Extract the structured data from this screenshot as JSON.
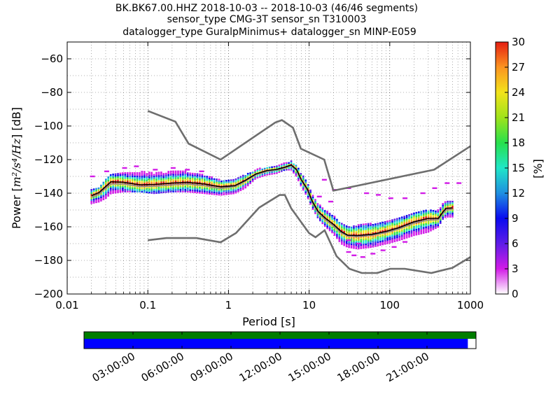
{
  "chart_data": {
    "type": "heatmap",
    "title_lines": [
      "BK.BK67.00.HHZ   2018-10-03 -- 2018-10-03  (46/46 segments)",
      "sensor_type CMG-3T sensor_sn T310003",
      "datalogger_type GuralpMinimus+ datalogger_sn MINP-E059"
    ],
    "xlabel": "Period [s]",
    "ylabel_parts": [
      "Power [",
      "m²/s⁴/Hz",
      "] [dB]"
    ],
    "x_scale": "log",
    "xlim": [
      0.01,
      1000
    ],
    "ylim": [
      -200,
      -50
    ],
    "x_ticks": [
      {
        "value": 0.01,
        "label": "0.01"
      },
      {
        "value": 0.1,
        "label": "0.1"
      },
      {
        "value": 1,
        "label": "1"
      },
      {
        "value": 10,
        "label": "10"
      },
      {
        "value": 100,
        "label": "100"
      },
      {
        "value": 1000,
        "label": "1000"
      }
    ],
    "y_ticks": [
      {
        "value": -60,
        "label": "−60"
      },
      {
        "value": -80,
        "label": "−80"
      },
      {
        "value": -100,
        "label": "−100"
      },
      {
        "value": -120,
        "label": "−120"
      },
      {
        "value": -140,
        "label": "−140"
      },
      {
        "value": -160,
        "label": "−160"
      },
      {
        "value": -180,
        "label": "−180"
      },
      {
        "value": -200,
        "label": "−200"
      }
    ],
    "grid": "dotted",
    "colorbar": {
      "label": "[%]",
      "range": [
        0,
        30
      ],
      "ticks": [
        "0",
        "3",
        "6",
        "9",
        "12",
        "15",
        "18",
        "21",
        "24",
        "27",
        "30"
      ],
      "colors": [
        "#ffffff",
        "#d21ce7",
        "#5e1ce7",
        "#0a0af0",
        "#1f8fe0",
        "#20e6c8",
        "#27e04c",
        "#9fe31b",
        "#f2e31b",
        "#fb9421",
        "#e51e12"
      ]
    },
    "nhnm": {
      "name": "NHNM",
      "color": "#6e6e6e",
      "points": [
        [
          0.1,
          -91
        ],
        [
          0.22,
          -97.4
        ],
        [
          0.32,
          -110.5
        ],
        [
          0.8,
          -120
        ],
        [
          3.8,
          -97.9
        ],
        [
          4.6,
          -96.5
        ],
        [
          6.3,
          -101
        ],
        [
          7.9,
          -113.5
        ],
        [
          15.4,
          -120
        ],
        [
          20,
          -138.5
        ],
        [
          354.8,
          -126
        ],
        [
          1000,
          -112
        ]
      ]
    },
    "nlnm": {
      "name": "NLNM",
      "color": "#6e6e6e",
      "points": [
        [
          0.1,
          -168
        ],
        [
          0.17,
          -166.7
        ],
        [
          0.4,
          -166.7
        ],
        [
          0.8,
          -169.2
        ],
        [
          1.24,
          -163.7
        ],
        [
          2.4,
          -148.6
        ],
        [
          4.3,
          -141.1
        ],
        [
          5,
          -141.1
        ],
        [
          6,
          -149
        ],
        [
          10,
          -163.8
        ],
        [
          12,
          -166.2
        ],
        [
          15.6,
          -162.1
        ],
        [
          21.9,
          -177.5
        ],
        [
          31.6,
          -185
        ],
        [
          45,
          -187.5
        ],
        [
          70,
          -187.5
        ],
        [
          101,
          -185
        ],
        [
          154,
          -185
        ],
        [
          328,
          -187.5
        ],
        [
          600,
          -184.4
        ],
        [
          1000,
          -178
        ]
      ]
    },
    "mean_curve": {
      "name": "mean",
      "color": "#000000",
      "points": [
        [
          0.02,
          -141.5
        ],
        [
          0.025,
          -139.5
        ],
        [
          0.03,
          -136
        ],
        [
          0.035,
          -133.2
        ],
        [
          0.05,
          -133.5
        ],
        [
          0.08,
          -135
        ],
        [
          0.12,
          -134.8
        ],
        [
          0.2,
          -134
        ],
        [
          0.3,
          -133.5
        ],
        [
          0.5,
          -134.5
        ],
        [
          0.8,
          -136.2
        ],
        [
          1.2,
          -135.5
        ],
        [
          1.6,
          -132.5
        ],
        [
          2.2,
          -128.5
        ],
        [
          3,
          -126.5
        ],
        [
          4,
          -125.8
        ],
        [
          5,
          -124.5
        ],
        [
          6,
          -123.2
        ],
        [
          7,
          -126
        ],
        [
          8,
          -132
        ],
        [
          9.5,
          -137.5
        ],
        [
          11,
          -145
        ],
        [
          13,
          -151
        ],
        [
          16,
          -155
        ],
        [
          20,
          -158.5
        ],
        [
          25,
          -162.8
        ],
        [
          30,
          -165
        ],
        [
          40,
          -165.2
        ],
        [
          60,
          -164.5
        ],
        [
          90,
          -162.7
        ],
        [
          130,
          -160.5
        ],
        [
          200,
          -157
        ],
        [
          300,
          -155
        ],
        [
          400,
          -155
        ],
        [
          460,
          -151
        ],
        [
          500,
          -149
        ],
        [
          600,
          -148.7
        ]
      ]
    },
    "mode_curve": {
      "name": "mode",
      "color": "#8a8a8a",
      "points": [
        [
          0.02,
          -142.5
        ],
        [
          0.025,
          -140.5
        ],
        [
          0.03,
          -137
        ],
        [
          0.035,
          -134.5
        ],
        [
          0.05,
          -134.5
        ],
        [
          0.08,
          -136
        ],
        [
          0.12,
          -135.8
        ],
        [
          0.2,
          -135
        ],
        [
          0.3,
          -134.5
        ],
        [
          0.5,
          -135.5
        ],
        [
          0.8,
          -137.2
        ],
        [
          1.2,
          -136
        ],
        [
          1.6,
          -133
        ],
        [
          2.2,
          -129
        ],
        [
          3,
          -127
        ],
        [
          4,
          -126.3
        ],
        [
          5,
          -125
        ],
        [
          6,
          -123.7
        ],
        [
          7,
          -126.5
        ],
        [
          8,
          -132.5
        ],
        [
          9.5,
          -138.5
        ],
        [
          11,
          -146
        ],
        [
          13,
          -152
        ],
        [
          16,
          -156
        ],
        [
          20,
          -159.5
        ],
        [
          25,
          -163.5
        ],
        [
          30,
          -165.5
        ],
        [
          40,
          -165.8
        ],
        [
          60,
          -165
        ],
        [
          90,
          -163.5
        ],
        [
          130,
          -161.3
        ],
        [
          200,
          -157.8
        ],
        [
          300,
          -156
        ],
        [
          400,
          -155.8
        ],
        [
          460,
          -152
        ],
        [
          500,
          -150
        ],
        [
          600,
          -149.5
        ]
      ]
    },
    "pdf_band": [
      {
        "x": 0.02,
        "lo": -146,
        "hi": -138
      },
      {
        "x": 0.025,
        "lo": -145,
        "hi": -136
      },
      {
        "x": 0.03,
        "lo": -143,
        "hi": -131
      },
      {
        "x": 0.035,
        "lo": -140,
        "hi": -129
      },
      {
        "x": 0.05,
        "lo": -139,
        "hi": -128
      },
      {
        "x": 0.08,
        "lo": -139,
        "hi": -127
      },
      {
        "x": 0.12,
        "lo": -140,
        "hi": -128
      },
      {
        "x": 0.2,
        "lo": -139,
        "hi": -127
      },
      {
        "x": 0.3,
        "lo": -139,
        "hi": -127
      },
      {
        "x": 0.5,
        "lo": -140,
        "hi": -129
      },
      {
        "x": 0.8,
        "lo": -141,
        "hi": -132
      },
      {
        "x": 1.2,
        "lo": -140,
        "hi": -132
      },
      {
        "x": 1.6,
        "lo": -137,
        "hi": -129
      },
      {
        "x": 2.2,
        "lo": -131,
        "hi": -126
      },
      {
        "x": 3,
        "lo": -129,
        "hi": -124
      },
      {
        "x": 4,
        "lo": -128,
        "hi": -124
      },
      {
        "x": 5,
        "lo": -126,
        "hi": -122
      },
      {
        "x": 6,
        "lo": -126,
        "hi": -121
      },
      {
        "x": 7,
        "lo": -130,
        "hi": -123
      },
      {
        "x": 8,
        "lo": -136,
        "hi": -128
      },
      {
        "x": 9.5,
        "lo": -142,
        "hi": -133
      },
      {
        "x": 11,
        "lo": -149,
        "hi": -141
      },
      {
        "x": 13,
        "lo": -155,
        "hi": -146
      },
      {
        "x": 16,
        "lo": -160,
        "hi": -150
      },
      {
        "x": 20,
        "lo": -164,
        "hi": -153
      },
      {
        "x": 25,
        "lo": -170,
        "hi": -158
      },
      {
        "x": 30,
        "lo": -172,
        "hi": -160
      },
      {
        "x": 40,
        "lo": -173,
        "hi": -159
      },
      {
        "x": 60,
        "lo": -172,
        "hi": -158
      },
      {
        "x": 90,
        "lo": -170,
        "hi": -157
      },
      {
        "x": 130,
        "lo": -168,
        "hi": -155
      },
      {
        "x": 200,
        "lo": -165,
        "hi": -152
      },
      {
        "x": 300,
        "lo": -163,
        "hi": -150
      },
      {
        "x": 400,
        "lo": -160,
        "hi": -150
      },
      {
        "x": 460,
        "lo": -155,
        "hi": -146
      },
      {
        "x": 500,
        "lo": -154,
        "hi": -145
      },
      {
        "x": 600,
        "lo": -154,
        "hi": -145
      }
    ],
    "outliers": [
      {
        "x": 0.02,
        "y": -130
      },
      {
        "x": 0.03,
        "y": -127
      },
      {
        "x": 0.05,
        "y": -125
      },
      {
        "x": 0.07,
        "y": -124
      },
      {
        "x": 0.12,
        "y": -126
      },
      {
        "x": 0.2,
        "y": -125
      },
      {
        "x": 0.3,
        "y": -126
      },
      {
        "x": 0.45,
        "y": -127
      },
      {
        "x": 30,
        "y": -175
      },
      {
        "x": 35,
        "y": -177
      },
      {
        "x": 45,
        "y": -178
      },
      {
        "x": 60,
        "y": -176
      },
      {
        "x": 80,
        "y": -174
      },
      {
        "x": 110,
        "y": -172
      },
      {
        "x": 150,
        "y": -169
      },
      {
        "x": 30,
        "y": -168
      },
      {
        "x": 40,
        "y": -170
      },
      {
        "x": 20,
        "y": -138
      },
      {
        "x": 30,
        "y": -137
      },
      {
        "x": 50,
        "y": -140
      },
      {
        "x": 70,
        "y": -141
      },
      {
        "x": 100,
        "y": -143
      },
      {
        "x": 150,
        "y": -143
      },
      {
        "x": 250,
        "y": -140
      },
      {
        "x": 350,
        "y": -137
      },
      {
        "x": 500,
        "y": -134
      },
      {
        "x": 700,
        "y": -134
      },
      {
        "x": 15,
        "y": -132
      },
      {
        "x": 13,
        "y": -142
      },
      {
        "x": 18,
        "y": -145
      }
    ],
    "timeline": {
      "start_hours": 0,
      "end_hours": 24,
      "ticks": [
        {
          "hours": 3,
          "label": "03:00:00"
        },
        {
          "hours": 6,
          "label": "06:00:00"
        },
        {
          "hours": 9,
          "label": "09:00:00"
        },
        {
          "hours": 12,
          "label": "12:00:00"
        },
        {
          "hours": 15,
          "label": "15:00:00"
        },
        {
          "hours": 18,
          "label": "18:00:00"
        },
        {
          "hours": 21,
          "label": "21:00:00"
        }
      ],
      "data_coverage": [
        {
          "start_hours": 0,
          "end_hours": 24,
          "color": "#007d00"
        }
      ],
      "psd_coverage": [
        {
          "start_hours": 0,
          "end_hours": 23.5,
          "color": "#0000ff"
        }
      ]
    }
  }
}
